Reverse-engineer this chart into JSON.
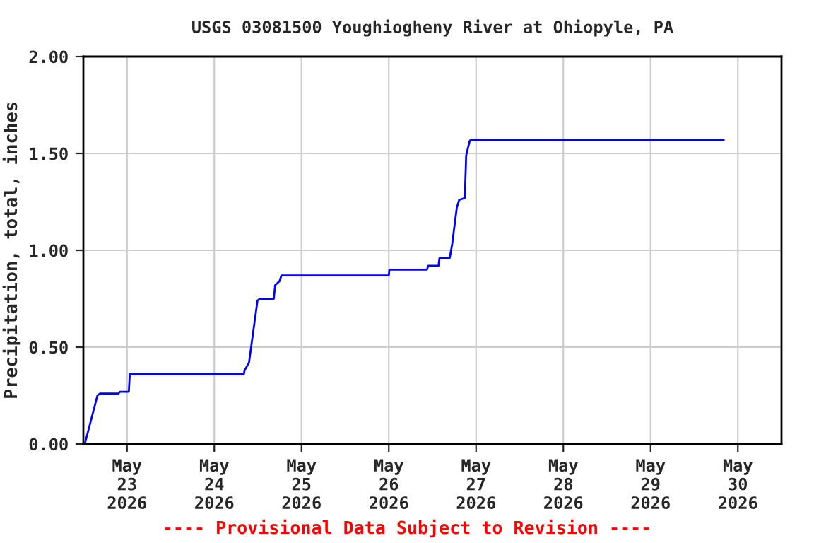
{
  "chart_data": {
    "type": "line",
    "title": "USGS 03081500 Youghiogheny River at Ohiopyle, PA",
    "ylabel": "Precipitation, total, inches",
    "annotations": [
      "---- Provisional Data Subject to Revision ----"
    ],
    "x": [
      "2026-05-22T12:23",
      "2026-05-22T15:52",
      "2026-05-22T16:30",
      "2026-05-22T21:40",
      "2026-05-22T22:04",
      "2026-05-23T00:30",
      "2026-05-23T00:46",
      "2026-05-24T08:08",
      "2026-05-24T08:20",
      "2026-05-24T09:33",
      "2026-05-24T11:53",
      "2026-05-24T12:30",
      "2026-05-24T16:22",
      "2026-05-24T16:45",
      "2026-05-24T17:56",
      "2026-05-24T18:28",
      "2026-05-26T00:00",
      "2026-05-26T00:10",
      "2026-05-26T10:30",
      "2026-05-26T10:51",
      "2026-05-26T13:40",
      "2026-05-26T13:57",
      "2026-05-26T16:45",
      "2026-05-26T17:25",
      "2026-05-26T18:42",
      "2026-05-26T19:21",
      "2026-05-26T20:54",
      "2026-05-26T21:17",
      "2026-05-26T22:11",
      "2026-05-26T22:30",
      "2026-05-29T20:08"
    ],
    "series": [
      {
        "color": "#0000ff",
        "values": [
          0.0,
          0.25,
          0.26,
          0.26,
          0.27,
          0.27,
          0.36,
          0.36,
          0.38,
          0.42,
          0.74,
          0.75,
          0.75,
          0.82,
          0.84,
          0.87,
          0.87,
          0.9,
          0.9,
          0.92,
          0.92,
          0.96,
          0.96,
          1.03,
          1.22,
          1.26,
          1.27,
          1.49,
          1.56,
          1.57,
          1.57
        ]
      }
    ],
    "xlim": [
      "2026-05-22T12:00",
      "2026-05-30T12:00"
    ],
    "xticks": [
      {
        "value": "2026-05-23",
        "label": "May\n23\n2026"
      },
      {
        "value": "2026-05-24",
        "label": "May\n24\n2026"
      },
      {
        "value": "2026-05-25",
        "label": "May\n25\n2026"
      },
      {
        "value": "2026-05-26",
        "label": "May\n26\n2026"
      },
      {
        "value": "2026-05-27",
        "label": "May\n27\n2026"
      },
      {
        "value": "2026-05-28",
        "label": "May\n28\n2026"
      },
      {
        "value": "2026-05-29",
        "label": "May\n29\n2026"
      },
      {
        "value": "2026-05-30",
        "label": "May\n30\n2026"
      }
    ],
    "ylim": [
      0,
      2.0
    ],
    "yticks": [
      {
        "value": 0,
        "label": "0.00"
      },
      {
        "value": 0.5,
        "label": "0.50"
      },
      {
        "value": 1.0,
        "label": "1.00"
      },
      {
        "value": 1.5,
        "label": "1.50"
      },
      {
        "value": 2.0,
        "label": "2.00"
      }
    ],
    "grid": true,
    "legend": false
  }
}
